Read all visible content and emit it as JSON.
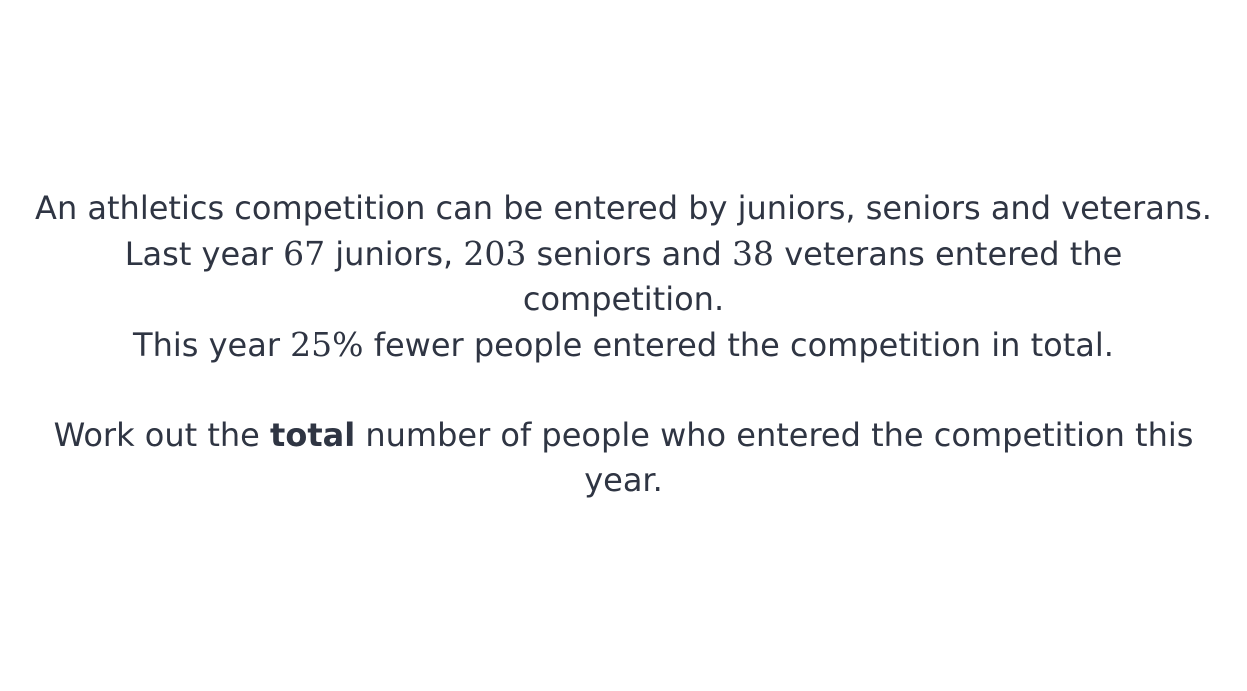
{
  "question": {
    "line1": "An athletics competition can be entered by juniors, seniors and veterans.",
    "line2": {
      "prefix": "Last year ",
      "juniors_count": "67",
      "text_a": " juniors, ",
      "seniors_count": "203",
      "text_b": " seniors and ",
      "veterans_count": "38",
      "suffix": " veterans entered the competition."
    },
    "line3": {
      "prefix": "This year ",
      "percent": "25%",
      "suffix": " fewer people entered the competition in total."
    },
    "prompt": {
      "prefix": "Work out the ",
      "emphasis": "total",
      "suffix": " number of people who entered the competition this year."
    }
  }
}
